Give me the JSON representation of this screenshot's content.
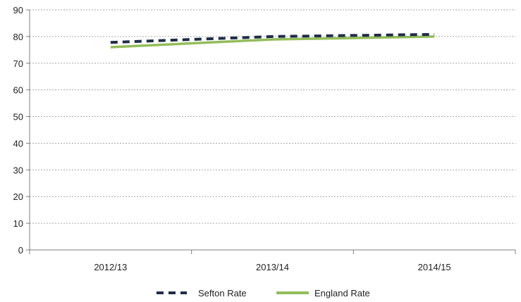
{
  "chart_data": {
    "type": "line",
    "title": "",
    "xlabel": "",
    "ylabel": "",
    "categories": [
      "2012/13",
      "2013/14",
      "2014/15"
    ],
    "ylim": [
      0,
      90
    ],
    "yticks": [
      0,
      10,
      20,
      30,
      40,
      50,
      60,
      70,
      80,
      90
    ],
    "grid": "horizontal dashed",
    "legend_position": "bottom",
    "series": [
      {
        "name": "Sefton Rate",
        "values": [
          77.8,
          80.0,
          80.8
        ],
        "color": "#1f2d4a",
        "style": "dashed"
      },
      {
        "name": "England Rate",
        "values": [
          76.0,
          78.9,
          80.0
        ],
        "color": "#93bd5a",
        "style": "solid"
      }
    ]
  }
}
